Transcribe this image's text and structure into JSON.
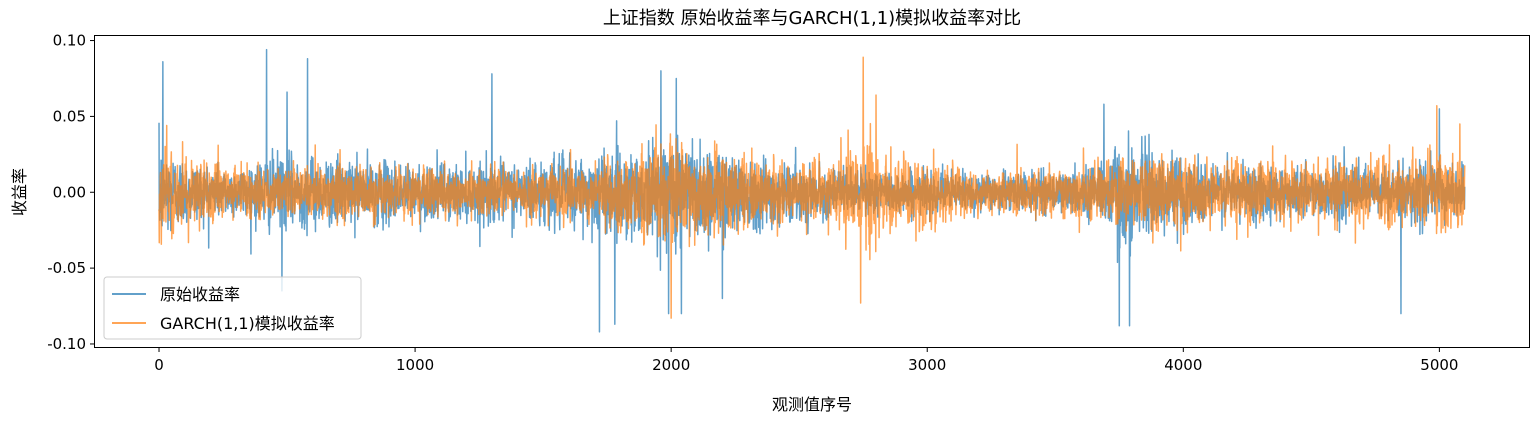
{
  "chart_data": {
    "type": "line",
    "title": "上证指数 原始收益率与GARCH(1,1)模拟收益率对比",
    "xlabel": "观测值序号",
    "ylabel": "收益率",
    "xlim": [
      -250,
      5350
    ],
    "ylim": [
      -0.102,
      0.103
    ],
    "xticks": [
      0,
      1000,
      2000,
      3000,
      4000,
      5000
    ],
    "xtick_labels": [
      "0",
      "1000",
      "2000",
      "3000",
      "4000",
      "5000"
    ],
    "yticks": [
      -0.1,
      -0.05,
      0.0,
      0.05,
      0.1
    ],
    "ytick_labels": [
      "-0.10",
      "-0.05",
      "0.00",
      "0.05",
      "0.10"
    ],
    "grid": false,
    "legend_position": "lower-left",
    "n_obs": 5100,
    "series": [
      {
        "name": "原始收益率",
        "color": "#1f77b4",
        "opacity": 0.7,
        "approx_volatility_envelope": [
          [
            0,
            0.022
          ],
          [
            100,
            0.014
          ],
          [
            300,
            0.01
          ],
          [
            420,
            0.016
          ],
          [
            600,
            0.015
          ],
          [
            900,
            0.013
          ],
          [
            1200,
            0.012
          ],
          [
            1500,
            0.014
          ],
          [
            1700,
            0.017
          ],
          [
            1900,
            0.02
          ],
          [
            2050,
            0.025
          ],
          [
            2200,
            0.019
          ],
          [
            2400,
            0.014
          ],
          [
            2600,
            0.01
          ],
          [
            2900,
            0.009
          ],
          [
            3300,
            0.008
          ],
          [
            3600,
            0.009
          ],
          [
            3750,
            0.024
          ],
          [
            3850,
            0.018
          ],
          [
            4100,
            0.013
          ],
          [
            4400,
            0.011
          ],
          [
            4700,
            0.011
          ],
          [
            4900,
            0.012
          ],
          [
            5100,
            0.012
          ]
        ],
        "spikes": [
          [
            15,
            0.086
          ],
          [
            420,
            0.094
          ],
          [
            500,
            0.066
          ],
          [
            580,
            0.088
          ],
          [
            1300,
            0.078
          ],
          [
            1720,
            -0.092
          ],
          [
            1780,
            -0.087
          ],
          [
            1960,
            0.08
          ],
          [
            1990,
            -0.08
          ],
          [
            2020,
            0.075
          ],
          [
            2040,
            -0.08
          ],
          [
            2200,
            -0.07
          ],
          [
            3750,
            -0.088
          ],
          [
            3790,
            -0.088
          ],
          [
            3690,
            0.058
          ],
          [
            4850,
            -0.08
          ],
          [
            5000,
            0.055
          ],
          [
            480,
            -0.065
          ]
        ]
      },
      {
        "name": "GARCH(1,1)模拟收益率",
        "color": "#ff7f0e",
        "opacity": 0.7,
        "approx_volatility_envelope": [
          [
            0,
            0.02
          ],
          [
            100,
            0.016
          ],
          [
            300,
            0.011
          ],
          [
            600,
            0.011
          ],
          [
            900,
            0.011
          ],
          [
            1200,
            0.01
          ],
          [
            1500,
            0.011
          ],
          [
            1800,
            0.015
          ],
          [
            2000,
            0.022
          ],
          [
            2200,
            0.018
          ],
          [
            2500,
            0.012
          ],
          [
            2650,
            0.015
          ],
          [
            2750,
            0.025
          ],
          [
            2900,
            0.017
          ],
          [
            3200,
            0.01
          ],
          [
            3500,
            0.009
          ],
          [
            3700,
            0.014
          ],
          [
            3900,
            0.016
          ],
          [
            4200,
            0.014
          ],
          [
            4500,
            0.013
          ],
          [
            4800,
            0.015
          ],
          [
            5000,
            0.017
          ],
          [
            5100,
            0.015
          ]
        ],
        "spikes": [
          [
            30,
            0.044
          ],
          [
            2000,
            -0.083
          ],
          [
            2750,
            0.089
          ],
          [
            2740,
            -0.073
          ],
          [
            2800,
            0.064
          ],
          [
            4990,
            0.057
          ],
          [
            5080,
            0.045
          ]
        ]
      }
    ]
  }
}
